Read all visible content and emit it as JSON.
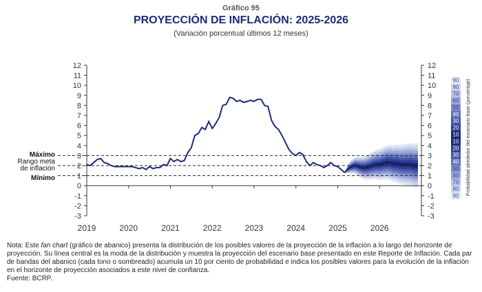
{
  "header": {
    "graph_number": "Gráfico 95",
    "title": "PROYECCIÓN DE INFLACIÓN: 2025-2026",
    "subtitle": "(Variación porcentual últimos 12 meses)"
  },
  "annotations": {
    "max_label": "Máximo",
    "range_label_1": "Rango meta",
    "range_label_2": "de inflación",
    "min_label": "Mínimo",
    "side_label": "Probabilidad alrededor del escenario base (porcentaje)"
  },
  "note": {
    "prefix": "Nota: Este ",
    "fan_term": "fan chart",
    "body": " (gráfico de abanico) presenta la distribución de los posibles valores de la proyección de la inflación a lo largo del horizonte de proyección. Su línea central es la moda de la distribución y muestra la proyección del escenario base presentado en este Reporte de Inflación. Cada par de bandas del abanico (cada tono o sombreado) acumula un 10 por ciento de probabilidad e indica los posibles valores para la evolución de la inflación en el horizonte de proyección asociados a este nivel de confianza.",
    "source": "Fuente: BCRP."
  },
  "chart_data": {
    "type": "line",
    "x_tick_labels": [
      "2019",
      "2020",
      "2021",
      "2022",
      "2023",
      "2024",
      "2025",
      "2026"
    ],
    "y_ticks": [
      12,
      11,
      10,
      9,
      8,
      7,
      6,
      5,
      4,
      3,
      2,
      1,
      0,
      -1,
      -2,
      -3
    ],
    "ylim": [
      -3,
      12
    ],
    "xlim": [
      2019.0,
      2027.0
    ],
    "target_range": {
      "max": 3,
      "center": 2,
      "min": 1
    },
    "history": {
      "x": [
        2019.0,
        2019.083,
        2019.167,
        2019.25,
        2019.333,
        2019.417,
        2019.5,
        2019.583,
        2019.667,
        2019.75,
        2019.833,
        2019.917,
        2020.0,
        2020.083,
        2020.167,
        2020.25,
        2020.333,
        2020.417,
        2020.5,
        2020.583,
        2020.667,
        2020.75,
        2020.833,
        2020.917,
        2021.0,
        2021.083,
        2021.167,
        2021.25,
        2021.333,
        2021.417,
        2021.5,
        2021.583,
        2021.667,
        2021.75,
        2021.833,
        2021.917,
        2022.0,
        2022.083,
        2022.167,
        2022.25,
        2022.333,
        2022.417,
        2022.5,
        2022.583,
        2022.667,
        2022.75,
        2022.833,
        2022.917,
        2023.0,
        2023.083,
        2023.167,
        2023.25,
        2023.333,
        2023.417,
        2023.5,
        2023.583,
        2023.667,
        2023.75,
        2023.833,
        2023.917,
        2024.0,
        2024.083,
        2024.167,
        2024.25,
        2024.333,
        2024.417,
        2024.5,
        2024.583,
        2024.667,
        2024.75,
        2024.833,
        2024.917,
        2025.0,
        2025.083,
        2025.167
      ],
      "y": [
        2.1,
        2.0,
        2.3,
        2.6,
        2.7,
        2.3,
        2.2,
        2.0,
        1.9,
        1.9,
        1.9,
        1.9,
        1.9,
        1.9,
        1.8,
        1.7,
        1.8,
        1.6,
        1.9,
        1.7,
        1.8,
        1.8,
        2.1,
        2.0,
        2.7,
        2.4,
        2.6,
        2.4,
        2.5,
        3.3,
        3.8,
        5.0,
        5.2,
        5.8,
        5.6,
        6.4,
        5.7,
        6.2,
        6.8,
        8.0,
        8.1,
        8.8,
        8.7,
        8.4,
        8.5,
        8.3,
        8.4,
        8.5,
        8.4,
        8.6,
        8.6,
        8.0,
        7.9,
        6.5,
        5.9,
        5.6,
        5.0,
        4.3,
        3.6,
        3.2,
        3.0,
        3.3,
        3.1,
        2.4,
        2.0,
        2.3,
        2.1,
        2.0,
        1.8,
        2.0,
        2.3,
        2.0,
        1.9,
        1.6,
        1.3
      ]
    },
    "projection": {
      "x": [
        2025.167,
        2025.25,
        2025.333,
        2025.417,
        2025.5,
        2025.583,
        2025.667,
        2025.75,
        2025.833,
        2025.917,
        2026.0,
        2026.083,
        2026.167,
        2026.25,
        2026.333,
        2026.417,
        2026.5,
        2026.583,
        2026.667,
        2026.75,
        2026.833,
        2026.917
      ],
      "y": [
        1.3,
        1.7,
        1.9,
        2.0,
        1.9,
        1.8,
        1.8,
        1.9,
        2.0,
        2.1,
        2.1,
        2.2,
        2.3,
        2.3,
        2.2,
        2.2,
        2.1,
        2.1,
        2.1,
        2.1,
        2.0,
        2.0
      ],
      "band_halfwidth_at_end": [
        0.25,
        0.5,
        0.75,
        1.0,
        1.25,
        1.5,
        1.75,
        2.0,
        2.25
      ]
    },
    "probability_scale": [
      90,
      80,
      70,
      60,
      50,
      40,
      30,
      20,
      10,
      10,
      20,
      30,
      40,
      50,
      60,
      70,
      80,
      90
    ],
    "colors": {
      "line": "#1b2a7a",
      "bands": [
        "#1b2a7a",
        "#2f3f96",
        "#4757ab",
        "#6271bd",
        "#7f8ccc",
        "#9ca7d9",
        "#b7c0e5",
        "#cfd6ef",
        "#e4e8f6"
      ]
    }
  }
}
